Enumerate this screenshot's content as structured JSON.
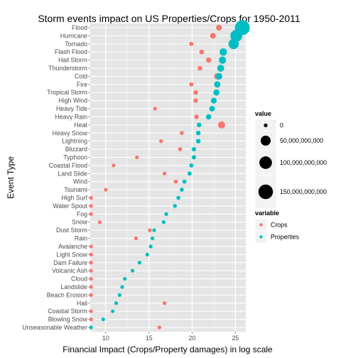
{
  "chart_data": {
    "type": "scatter",
    "title": "Storm events impact on US Properties/Crops for 1950-2011",
    "xlabel": "Financial Impact (Crops/Property damages) in log scale",
    "ylabel": "Event Type",
    "xlim": [
      8.2,
      26.2
    ],
    "x_ticks": [
      10,
      15,
      20,
      25
    ],
    "grid": true,
    "legend_position": "right",
    "size_legend": {
      "title": "value",
      "entries": [
        {
          "label": "0",
          "value": 0
        },
        {
          "label": "50,000,000,000",
          "value": 50000000000
        },
        {
          "label": "100,000,000,000",
          "value": 100000000000
        },
        {
          "label": "150,000,000,000",
          "value": 150000000000
        }
      ]
    },
    "color_legend": {
      "title": "variable",
      "entries": [
        {
          "label": "Crops",
          "color": "#F8766D"
        },
        {
          "label": "Properties",
          "color": "#00BFC4"
        }
      ]
    },
    "categories": [
      "Flood",
      "Hurricane",
      "Tornado",
      "Flash Flood",
      "Hail Storm",
      "Thunderstorm",
      "Cold",
      "Fire",
      "Tropical Storm",
      "High Wind",
      "Heavy Tide",
      "Heavy Rain",
      "Heat",
      "Heavy Snow",
      "Lightning",
      "Blizzard",
      "Typhoon",
      "Coastal Flood",
      "Land Slide",
      "Wind",
      "Tsunami",
      "High Surf",
      "Water Spout",
      "Fog",
      "Snow",
      "Dust Storm",
      "Rain",
      "Avalanche",
      "Light Snow",
      "Dam Failure",
      "Volcanic Ash",
      "Cloud",
      "Landslide",
      "Beach Erosion",
      "Hail",
      "Coastal Storm",
      "Blowing Snow",
      "Unseasonable Weather"
    ],
    "series": [
      {
        "name": "Crops",
        "color": "#F8766D",
        "values": [
          23.1,
          22.4,
          19.9,
          21.1,
          21.9,
          20.9,
          22.9,
          19.9,
          20.4,
          20.4,
          15.7,
          20.5,
          23.4,
          18.8,
          16.4,
          18.6,
          13.6,
          10.9,
          16.8,
          18.1,
          10.0,
          8.3,
          8.3,
          8.3,
          9.3,
          15.1,
          13.5,
          8.3,
          8.3,
          8.3,
          8.3,
          8.3,
          8.3,
          8.3,
          16.8,
          8.3,
          8.3,
          16.2
        ],
        "size_values": [
          5200000000,
          5500000000,
          420000000,
          1400000000,
          3000000000,
          1200000000,
          8700000000,
          400000000,
          690000000,
          690000000,
          6500000,
          810000000,
          14000000000,
          130000000,
          13000000,
          110000000,
          830000,
          55000,
          20000000,
          72000000,
          21000,
          0,
          0,
          0,
          12000,
          3600000,
          720000,
          0,
          0,
          0,
          0,
          0,
          0,
          0,
          20000000,
          0,
          0,
          11000000
        ]
      },
      {
        "name": "Properties",
        "color": "#00BFC4",
        "values": [
          25.8,
          25.1,
          24.8,
          23.6,
          23.5,
          23.3,
          23.1,
          22.9,
          22.8,
          22.5,
          22.3,
          21.9,
          20.8,
          20.7,
          20.7,
          20.2,
          20.2,
          19.9,
          19.7,
          19.1,
          18.8,
          18.4,
          18.0,
          17.0,
          16.7,
          15.6,
          15.4,
          15.2,
          14.8,
          13.9,
          13.1,
          12.2,
          11.9,
          11.6,
          11.2,
          10.8,
          9.7,
          8.3
        ],
        "size_values": [
          160000000000,
          85000000000,
          58000000000,
          18000000000,
          16000000000,
          13000000000,
          11000000000,
          8900000000,
          7900000000,
          5900000000,
          4800000000,
          3300000000,
          1100000000,
          960000000,
          960000000,
          590000000,
          590000000,
          440000000,
          360000000,
          200000000,
          150000000,
          98000000,
          66000000,
          24000000,
          18000000,
          6000000,
          4900000,
          4000000,
          2700000,
          1100000,
          490000,
          200000,
          150000,
          110000,
          73000,
          49000,
          16000,
          0
        ]
      }
    ]
  }
}
